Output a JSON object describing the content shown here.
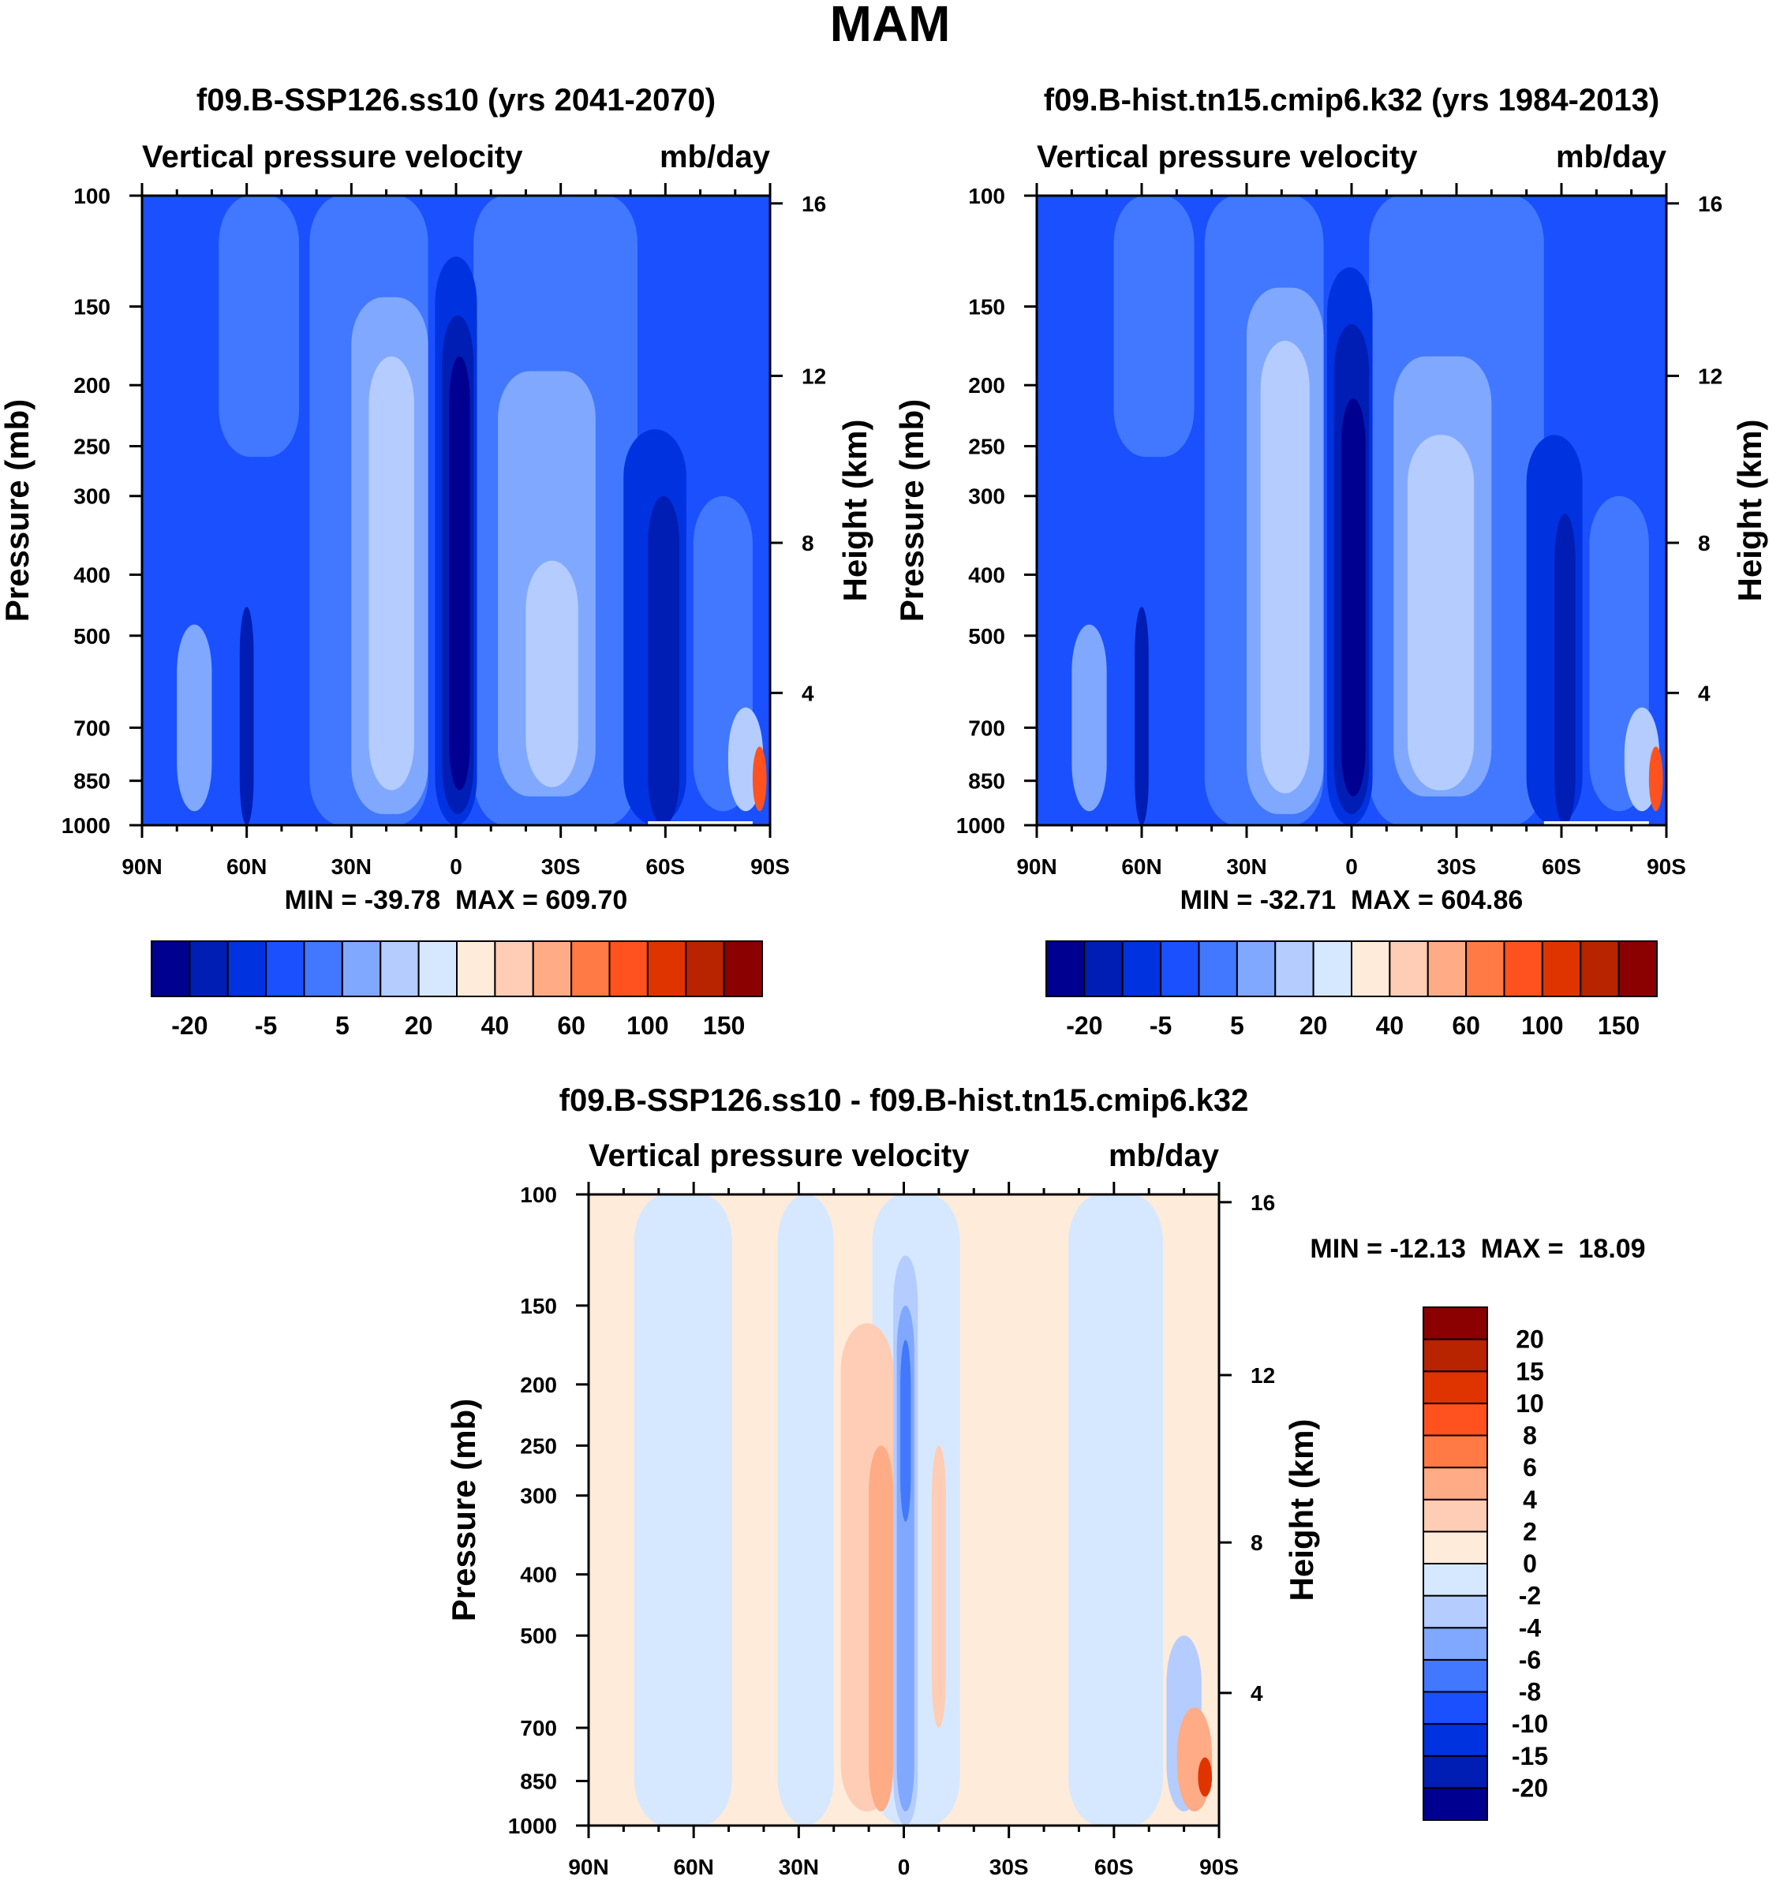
{
  "figure": {
    "title": "MAM"
  },
  "colorbars": {
    "abs": {
      "colors": [
        "#000090",
        "#001EB4",
        "#0032E0",
        "#1A50FF",
        "#4178FF",
        "#80A8FF",
        "#B4CCFF",
        "#D6E8FF",
        "#FFEBDA",
        "#FFCDB5",
        "#FFAB85",
        "#FF7A45",
        "#FF521E",
        "#E03400",
        "#B82300",
        "#8B0000"
      ],
      "labels": [
        "-20",
        "-5",
        "5",
        "20",
        "40",
        "60",
        "100",
        "150"
      ]
    },
    "diff": {
      "colors": [
        "#000090",
        "#001EB4",
        "#0032E0",
        "#1A50FF",
        "#4178FF",
        "#80A8FF",
        "#B4CCFF",
        "#D6E8FF",
        "#FFEBDA",
        "#FFCDB5",
        "#FFAB85",
        "#FF7A45",
        "#FF521E",
        "#E03400",
        "#B82300",
        "#8B0000"
      ],
      "labels": [
        "-20",
        "-15",
        "-10",
        "-8",
        "-6",
        "-4",
        "-2",
        "0",
        "2",
        "4",
        "6",
        "8",
        "10",
        "15",
        "20"
      ]
    }
  },
  "chart_data": [
    {
      "type": "contour",
      "title": "f09.B-SSP126.ss10 (yrs 2041-2070)",
      "field_label": "Vertical pressure velocity",
      "units": "mb/day",
      "ylabel": "Pressure (mb)",
      "ylabel_right": "Height (km)",
      "xticks": [
        "90N",
        "60N",
        "30N",
        "0",
        "30S",
        "60S",
        "90S"
      ],
      "x_values": [
        90,
        60,
        30,
        0,
        -30,
        -60,
        -90
      ],
      "yticks": [
        100,
        150,
        200,
        250,
        300,
        400,
        500,
        700,
        850,
        1000
      ],
      "ylim": [
        1000,
        100
      ],
      "height_ticks": [
        16,
        12,
        8,
        4
      ],
      "stats": "MIN = -39.78  MAX = 609.70",
      "colorbar": "abs",
      "base_level": 3,
      "regions": [
        {
          "lat": [
            68,
            45
          ],
          "p": [
            100,
            260
          ],
          "level": 4
        },
        {
          "lat": [
            42,
            8
          ],
          "p": [
            100,
            1000
          ],
          "level": 4
        },
        {
          "lat": [
            -5,
            -52
          ],
          "p": [
            100,
            1000
          ],
          "level": 4
        },
        {
          "lat": [
            80,
            70
          ],
          "p": [
            480,
            950
          ],
          "level": 5
        },
        {
          "lat": [
            62,
            58
          ],
          "p": [
            450,
            1000
          ],
          "level": 1
        },
        {
          "lat": [
            30,
            8
          ],
          "p": [
            145,
            960
          ],
          "level": 5
        },
        {
          "lat": [
            25,
            12
          ],
          "p": [
            180,
            880
          ],
          "level": 6
        },
        {
          "lat": [
            -12,
            -40
          ],
          "p": [
            190,
            900
          ],
          "level": 5
        },
        {
          "lat": [
            -20,
            -35
          ],
          "p": [
            380,
            870
          ],
          "level": 6
        },
        {
          "lat": [
            6,
            -6
          ],
          "p": [
            125,
            1000
          ],
          "level": 2
        },
        {
          "lat": [
            4,
            -5
          ],
          "p": [
            155,
            960
          ],
          "level": 1
        },
        {
          "lat": [
            2,
            -4
          ],
          "p": [
            180,
            880
          ],
          "level": 0
        },
        {
          "lat": [
            -48,
            -66
          ],
          "p": [
            235,
            1000
          ],
          "level": 2
        },
        {
          "lat": [
            -55,
            -64
          ],
          "p": [
            300,
            1000
          ],
          "level": 1
        },
        {
          "lat": [
            -68,
            -85
          ],
          "p": [
            300,
            950
          ],
          "level": 4
        },
        {
          "lat": [
            -78,
            -88
          ],
          "p": [
            650,
            950
          ],
          "level": 6
        },
        {
          "lat": [
            -85,
            -89
          ],
          "p": [
            750,
            950
          ],
          "level": 12
        }
      ]
    },
    {
      "type": "contour",
      "title": "f09.B-hist.tn15.cmip6.k32 (yrs 1984-2013)",
      "field_label": "Vertical pressure velocity",
      "units": "mb/day",
      "ylabel": "Pressure (mb)",
      "ylabel_right": "Height (km)",
      "xticks": [
        "90N",
        "60N",
        "30N",
        "0",
        "30S",
        "60S",
        "90S"
      ],
      "x_values": [
        90,
        60,
        30,
        0,
        -30,
        -60,
        -90
      ],
      "yticks": [
        100,
        150,
        200,
        250,
        300,
        400,
        500,
        700,
        850,
        1000
      ],
      "ylim": [
        1000,
        100
      ],
      "height_ticks": [
        16,
        12,
        8,
        4
      ],
      "stats": "MIN = -32.71  MAX = 604.86",
      "colorbar": "abs",
      "base_level": 3,
      "regions": [
        {
          "lat": [
            68,
            45
          ],
          "p": [
            100,
            260
          ],
          "level": 4
        },
        {
          "lat": [
            42,
            8
          ],
          "p": [
            100,
            1000
          ],
          "level": 4
        },
        {
          "lat": [
            -5,
            -55
          ],
          "p": [
            100,
            1000
          ],
          "level": 4
        },
        {
          "lat": [
            80,
            70
          ],
          "p": [
            480,
            950
          ],
          "level": 5
        },
        {
          "lat": [
            62,
            58
          ],
          "p": [
            450,
            1000
          ],
          "level": 1
        },
        {
          "lat": [
            30,
            8
          ],
          "p": [
            140,
            960
          ],
          "level": 5
        },
        {
          "lat": [
            26,
            12
          ],
          "p": [
            170,
            890
          ],
          "level": 6
        },
        {
          "lat": [
            -12,
            -40
          ],
          "p": [
            180,
            900
          ],
          "level": 5
        },
        {
          "lat": [
            -16,
            -35
          ],
          "p": [
            240,
            880
          ],
          "level": 6
        },
        {
          "lat": [
            7,
            -6
          ],
          "p": [
            130,
            1000
          ],
          "level": 2
        },
        {
          "lat": [
            5,
            -5
          ],
          "p": [
            160,
            960
          ],
          "level": 1
        },
        {
          "lat": [
            3,
            -4
          ],
          "p": [
            210,
            900
          ],
          "level": 0
        },
        {
          "lat": [
            -50,
            -66
          ],
          "p": [
            240,
            1000
          ],
          "level": 2
        },
        {
          "lat": [
            -58,
            -64
          ],
          "p": [
            320,
            1000
          ],
          "level": 1
        },
        {
          "lat": [
            -68,
            -85
          ],
          "p": [
            300,
            950
          ],
          "level": 4
        },
        {
          "lat": [
            -78,
            -88
          ],
          "p": [
            650,
            950
          ],
          "level": 6
        },
        {
          "lat": [
            -85,
            -89
          ],
          "p": [
            750,
            950
          ],
          "level": 12
        }
      ]
    },
    {
      "type": "contour",
      "title": "f09.B-SSP126.ss10 - f09.B-hist.tn15.cmip6.k32",
      "field_label": "Vertical pressure velocity",
      "units": "mb/day",
      "ylabel": "Pressure (mb)",
      "ylabel_right": "Height (km)",
      "xticks": [
        "90N",
        "60N",
        "30N",
        "0",
        "30S",
        "60S",
        "90S"
      ],
      "x_values": [
        90,
        60,
        30,
        0,
        -30,
        -60,
        -90
      ],
      "yticks": [
        100,
        150,
        200,
        250,
        300,
        400,
        500,
        700,
        850,
        1000
      ],
      "ylim": [
        1000,
        100
      ],
      "height_ticks": [
        16,
        12,
        8,
        4
      ],
      "stats": "MIN = -12.13  MAX =  18.09",
      "colorbar": "diff",
      "base_level": 8,
      "regions": [
        {
          "lat": [
            77,
            49
          ],
          "p": [
            100,
            1000
          ],
          "level": 7
        },
        {
          "lat": [
            36,
            20
          ],
          "p": [
            100,
            1000
          ],
          "level": 7
        },
        {
          "lat": [
            9,
            -16
          ],
          "p": [
            100,
            1000
          ],
          "level": 7
        },
        {
          "lat": [
            -47,
            -74
          ],
          "p": [
            100,
            1000
          ],
          "level": 7
        },
        {
          "lat": [
            18,
            3
          ],
          "p": [
            160,
            950
          ],
          "level": 9
        },
        {
          "lat": [
            10,
            3
          ],
          "p": [
            250,
            950
          ],
          "level": 10
        },
        {
          "lat": [
            3,
            -4
          ],
          "p": [
            125,
            1000
          ],
          "level": 6
        },
        {
          "lat": [
            2,
            -3
          ],
          "p": [
            150,
            950
          ],
          "level": 5
        },
        {
          "lat": [
            1,
            -2
          ],
          "p": [
            170,
            330
          ],
          "level": 4
        },
        {
          "lat": [
            -8,
            -12
          ],
          "p": [
            250,
            700
          ],
          "level": 9
        },
        {
          "lat": [
            -75,
            -85
          ],
          "p": [
            500,
            950
          ],
          "level": 6
        },
        {
          "lat": [
            -78,
            -88
          ],
          "p": [
            650,
            950
          ],
          "level": 10
        },
        {
          "lat": [
            -84,
            -88
          ],
          "p": [
            780,
            900
          ],
          "level": 13
        }
      ]
    }
  ]
}
